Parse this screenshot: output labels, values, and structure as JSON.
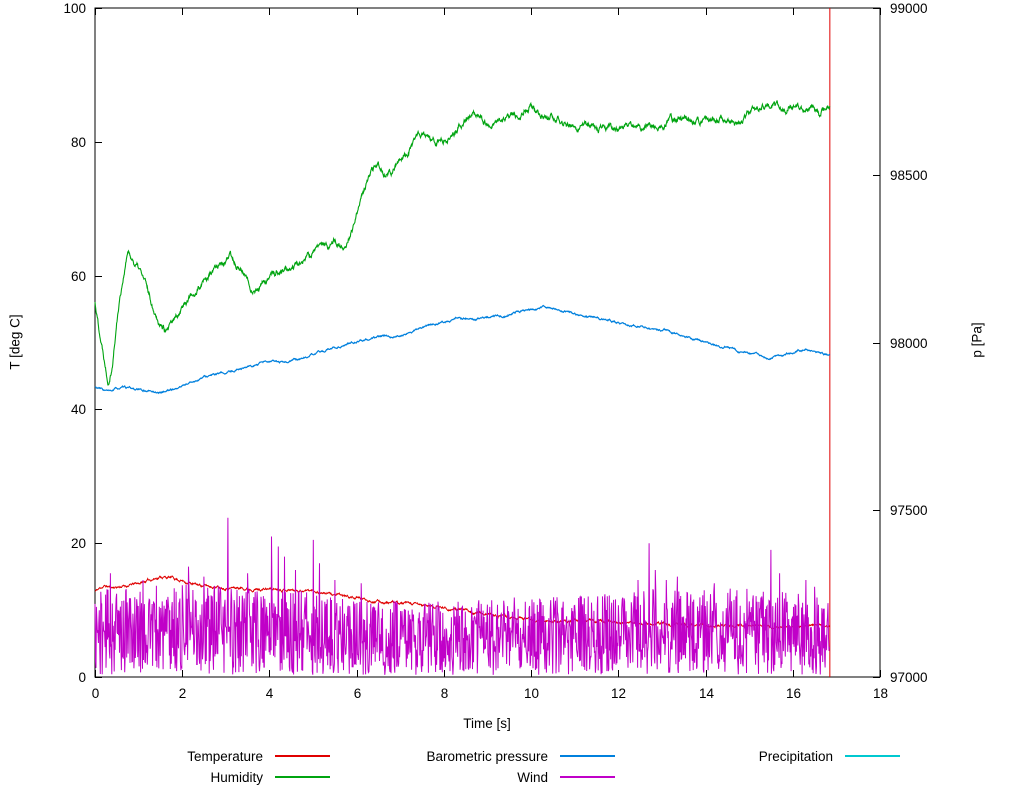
{
  "chart_data": {
    "type": "line",
    "title": "",
    "xlabel": "Time [s]",
    "ylabel": "T [deg C]",
    "y2label": "p [Pa]",
    "xlim": [
      0,
      18
    ],
    "ylim": [
      0,
      100
    ],
    "y2lim": [
      97000,
      99000
    ],
    "xticks": [
      0,
      2,
      4,
      6,
      8,
      10,
      12,
      14,
      16,
      18
    ],
    "yticks": [
      0,
      20,
      40,
      60,
      80,
      100
    ],
    "y2ticks": [
      97000,
      97500,
      98000,
      98500,
      99000
    ],
    "grid": false,
    "legend_position": "bottom",
    "series": [
      {
        "name": "Temperature",
        "color": "#e00000",
        "axis": "y1",
        "seed": 11,
        "noise": 0.12,
        "step": 0.008,
        "width": 1,
        "keypoints": [
          [
            0,
            12.8
          ],
          [
            0.2,
            13.6
          ],
          [
            0.4,
            13.4
          ],
          [
            0.7,
            13.6
          ],
          [
            1,
            14
          ],
          [
            1.3,
            14.6
          ],
          [
            1.5,
            15
          ],
          [
            1.8,
            14.8
          ],
          [
            2,
            14.4
          ],
          [
            2.3,
            13.8
          ],
          [
            2.6,
            13.6
          ],
          [
            3,
            13.4
          ],
          [
            3.4,
            13.3
          ],
          [
            3.8,
            13.1
          ],
          [
            4.2,
            13.2
          ],
          [
            4.6,
            13
          ],
          [
            5,
            12.9
          ],
          [
            5.4,
            12.4
          ],
          [
            5.8,
            12
          ],
          [
            6.2,
            11.6
          ],
          [
            6.6,
            11.2
          ],
          [
            7,
            11
          ],
          [
            7.4,
            10.8
          ],
          [
            7.8,
            10.5
          ],
          [
            8.2,
            10.2
          ],
          [
            8.6,
            9.8
          ],
          [
            9,
            9.4
          ],
          [
            9.4,
            9
          ],
          [
            9.8,
            8.7
          ],
          [
            10.2,
            8.4
          ],
          [
            10.6,
            8.3
          ],
          [
            11,
            8.4
          ],
          [
            11.4,
            8.3
          ],
          [
            11.8,
            8.2
          ],
          [
            12.2,
            8.1
          ],
          [
            12.6,
            8
          ],
          [
            13,
            7.9
          ],
          [
            13.5,
            7.8
          ],
          [
            14,
            7.7
          ],
          [
            14.5,
            7.7
          ],
          [
            15,
            7.6
          ],
          [
            15.5,
            7.6
          ],
          [
            16,
            7.5
          ],
          [
            16.4,
            7.8
          ],
          [
            16.7,
            7.6
          ],
          [
            16.85,
            7.3
          ]
        ],
        "end_spike": {
          "x": 16.85,
          "from": 0,
          "to": 100
        }
      },
      {
        "name": "Humidity",
        "color": "#00a410",
        "axis": "y1",
        "seed": 22,
        "noise": 0.3,
        "step": 0.008,
        "width": 1.1,
        "keypoints": [
          [
            0,
            56
          ],
          [
            0.15,
            50
          ],
          [
            0.3,
            44.5
          ],
          [
            0.4,
            47
          ],
          [
            0.5,
            53
          ],
          [
            0.55,
            56
          ],
          [
            0.65,
            60
          ],
          [
            0.75,
            63.5
          ],
          [
            0.9,
            62
          ],
          [
            1.05,
            60.5
          ],
          [
            1.2,
            58
          ],
          [
            1.35,
            55
          ],
          [
            1.5,
            53
          ],
          [
            1.65,
            51.5
          ],
          [
            1.8,
            53
          ],
          [
            2,
            55.5
          ],
          [
            2.2,
            57
          ],
          [
            2.45,
            58.5
          ],
          [
            2.7,
            60.5
          ],
          [
            2.9,
            62
          ],
          [
            3.1,
            62.5
          ],
          [
            3.3,
            61.5
          ],
          [
            3.5,
            59
          ],
          [
            3.65,
            57.8
          ],
          [
            3.8,
            58.5
          ],
          [
            4,
            59.5
          ],
          [
            4.2,
            60.5
          ],
          [
            4.5,
            61
          ],
          [
            4.75,
            62
          ],
          [
            5,
            63.5
          ],
          [
            5.15,
            64.5
          ],
          [
            5.3,
            64
          ],
          [
            5.5,
            65
          ],
          [
            5.7,
            64.5
          ],
          [
            5.9,
            67
          ],
          [
            6.05,
            70
          ],
          [
            6.2,
            73
          ],
          [
            6.35,
            75.5
          ],
          [
            6.5,
            76
          ],
          [
            6.65,
            74.5
          ],
          [
            6.8,
            75.5
          ],
          [
            7,
            77.5
          ],
          [
            7.2,
            79
          ],
          [
            7.4,
            80.5
          ],
          [
            7.55,
            81
          ],
          [
            7.7,
            80
          ],
          [
            7.9,
            79.8
          ],
          [
            8.1,
            81
          ],
          [
            8.35,
            82.5
          ],
          [
            8.6,
            84
          ],
          [
            8.75,
            84.5
          ],
          [
            8.9,
            83
          ],
          [
            9.05,
            82.3
          ],
          [
            9.25,
            82.8
          ],
          [
            9.5,
            83.5
          ],
          [
            9.75,
            84
          ],
          [
            9.95,
            85.5
          ],
          [
            10.1,
            84.5
          ],
          [
            10.3,
            83.8
          ],
          [
            10.6,
            83.2
          ],
          [
            10.9,
            82.6
          ],
          [
            11.2,
            82.2
          ],
          [
            11.5,
            82.4
          ],
          [
            11.8,
            82.2
          ],
          [
            12.1,
            82
          ],
          [
            12.4,
            82.2
          ],
          [
            12.7,
            82.1
          ],
          [
            13,
            82.4
          ],
          [
            13.2,
            83
          ],
          [
            13.45,
            83.6
          ],
          [
            13.7,
            83.2
          ],
          [
            13.95,
            82.7
          ],
          [
            14.2,
            83.2
          ],
          [
            14.45,
            83
          ],
          [
            14.7,
            82.6
          ],
          [
            14.9,
            83.5
          ],
          [
            15.1,
            85
          ],
          [
            15.35,
            85.6
          ],
          [
            15.6,
            85.2
          ],
          [
            15.85,
            85
          ],
          [
            16.1,
            85.4
          ],
          [
            16.35,
            84.8
          ],
          [
            16.6,
            84.3
          ],
          [
            16.75,
            85
          ],
          [
            16.85,
            86
          ]
        ]
      },
      {
        "name": "Barometric pressure",
        "color": "#0080dd",
        "axis": "y2",
        "seed": 33,
        "noise": 2,
        "step": 0.01,
        "width": 1.2,
        "keypoints": [
          [
            0,
            97866
          ],
          [
            0.2,
            97858
          ],
          [
            0.35,
            97852
          ],
          [
            0.5,
            97862
          ],
          [
            0.7,
            97864
          ],
          [
            0.9,
            97860
          ],
          [
            1.1,
            97856
          ],
          [
            1.3,
            97854
          ],
          [
            1.5,
            97850
          ],
          [
            1.7,
            97858
          ],
          [
            1.9,
            97864
          ],
          [
            2.1,
            97876
          ],
          [
            2.3,
            97886
          ],
          [
            2.5,
            97896
          ],
          [
            2.7,
            97902
          ],
          [
            2.9,
            97906
          ],
          [
            3.1,
            97912
          ],
          [
            3.3,
            97922
          ],
          [
            3.5,
            97928
          ],
          [
            3.7,
            97932
          ],
          [
            3.9,
            97940
          ],
          [
            4.1,
            97942
          ],
          [
            4.3,
            97938
          ],
          [
            4.5,
            97946
          ],
          [
            4.7,
            97950
          ],
          [
            4.9,
            97958
          ],
          [
            5.1,
            97968
          ],
          [
            5.3,
            97976
          ],
          [
            5.5,
            97984
          ],
          [
            5.7,
            97992
          ],
          [
            5.9,
            98000
          ],
          [
            6.1,
            98008
          ],
          [
            6.3,
            98012
          ],
          [
            6.5,
            98016
          ],
          [
            6.7,
            98018
          ],
          [
            6.9,
            98018
          ],
          [
            7.1,
            98024
          ],
          [
            7.3,
            98034
          ],
          [
            7.5,
            98042
          ],
          [
            7.7,
            98052
          ],
          [
            7.9,
            98058
          ],
          [
            8.1,
            98066
          ],
          [
            8.3,
            98074
          ],
          [
            8.5,
            98072
          ],
          [
            8.7,
            98066
          ],
          [
            8.9,
            98076
          ],
          [
            9.1,
            98080
          ],
          [
            9.3,
            98076
          ],
          [
            9.5,
            98084
          ],
          [
            9.7,
            98092
          ],
          [
            9.9,
            98096
          ],
          [
            10.1,
            98100
          ],
          [
            10.3,
            98106
          ],
          [
            10.5,
            98102
          ],
          [
            10.7,
            98094
          ],
          [
            10.9,
            98088
          ],
          [
            11.1,
            98082
          ],
          [
            11.3,
            98078
          ],
          [
            11.5,
            98074
          ],
          [
            11.7,
            98068
          ],
          [
            11.9,
            98062
          ],
          [
            12.1,
            98056
          ],
          [
            12.3,
            98052
          ],
          [
            12.5,
            98048
          ],
          [
            12.7,
            98044
          ],
          [
            12.9,
            98040
          ],
          [
            13.1,
            98036
          ],
          [
            13.3,
            98026
          ],
          [
            13.5,
            98020
          ],
          [
            13.7,
            98012
          ],
          [
            13.9,
            98004
          ],
          [
            14.1,
            97998
          ],
          [
            14.3,
            97990
          ],
          [
            14.5,
            97984
          ],
          [
            14.7,
            97978
          ],
          [
            14.9,
            97972
          ],
          [
            15.1,
            97966
          ],
          [
            15.3,
            97960
          ],
          [
            15.5,
            97956
          ],
          [
            15.7,
            97958
          ],
          [
            15.9,
            97966
          ],
          [
            16.1,
            97976
          ],
          [
            16.3,
            97980
          ],
          [
            16.5,
            97972
          ],
          [
            16.7,
            97966
          ],
          [
            16.85,
            97964
          ]
        ]
      },
      {
        "name": "Wind",
        "color": "#c000c8",
        "axis": "y1",
        "seed": 44,
        "width": 1,
        "random_band": {
          "min": 0.3,
          "step": 0.011,
          "tmax": 16.85,
          "max_env": [
            [
              0,
              13
            ],
            [
              1,
              13.5
            ],
            [
              2,
              14
            ],
            [
              3,
              13.5
            ],
            [
              4,
              13
            ],
            [
              5,
              13
            ],
            [
              5.5,
              12
            ],
            [
              6,
              11.5
            ],
            [
              8,
              11.5
            ],
            [
              10,
              12
            ],
            [
              12,
              12.5
            ],
            [
              12.5,
              13.5
            ],
            [
              13,
              13
            ],
            [
              14,
              13
            ],
            [
              15,
              13.5
            ],
            [
              16,
              12.5
            ],
            [
              16.85,
              12
            ]
          ]
        },
        "spikes": [
          [
            0.35,
            15.5
          ],
          [
            1.1,
            14.5
          ],
          [
            2.15,
            16.5
          ],
          [
            2.5,
            15
          ],
          [
            3.05,
            23.8
          ],
          [
            3.5,
            15.5
          ],
          [
            4.05,
            21
          ],
          [
            4.2,
            19.5
          ],
          [
            4.35,
            18
          ],
          [
            4.6,
            16
          ],
          [
            5,
            20.5
          ],
          [
            5.15,
            17
          ],
          [
            5.5,
            14.5
          ],
          [
            6.1,
            14
          ],
          [
            12.45,
            14.5
          ],
          [
            12.7,
            20
          ],
          [
            12.85,
            16
          ],
          [
            13.1,
            14.5
          ],
          [
            13.35,
            15
          ],
          [
            14.2,
            14
          ],
          [
            15.5,
            19
          ],
          [
            15.7,
            15.5
          ],
          [
            16.3,
            14.5
          ],
          [
            16.5,
            13.5
          ]
        ]
      },
      {
        "name": "Precipitation",
        "color": "#00c8d0",
        "axis": "y1",
        "width": 1,
        "keypoints": []
      }
    ]
  }
}
